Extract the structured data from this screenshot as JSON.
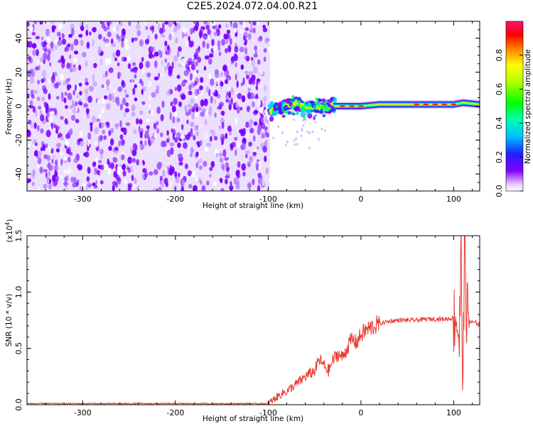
{
  "title": "C2E5.2024.072.04.00.R21",
  "chart_data": [
    {
      "type": "heatmap",
      "xlabel": "Height of straight line (km)",
      "ylabel": "Frequency (Hz)",
      "xlim": [
        -360,
        128
      ],
      "ylim": [
        -50,
        50
      ],
      "xticks": [
        -300,
        -200,
        -100,
        0,
        100
      ],
      "xtick_labels": [
        "-300",
        "-200",
        "-100",
        "0",
        "100"
      ],
      "yticks": [
        -40,
        -20,
        0,
        20,
        40
      ],
      "ytick_labels": [
        "-40",
        "-20",
        "0",
        "20",
        "40"
      ],
      "colorscale": "rainbow (purple-blue-cyan-green-yellow-red-magenta)",
      "colorbar": {
        "label": "Normalized spectral amplitude",
        "range": [
          0,
          1
        ],
        "ticks": [
          0.0,
          0.2,
          0.4,
          0.6,
          0.8
        ],
        "tick_labels": [
          "0.0",
          "0.2",
          "0.4",
          "0.6",
          "0.8"
        ]
      },
      "features": {
        "noise_region_x": [
          -360,
          -98
        ],
        "signal_ridge": [
          [
            -98,
            -3
          ],
          [
            -90,
            -2
          ],
          [
            -80,
            1
          ],
          [
            -70,
            2
          ],
          [
            -60,
            -1
          ],
          [
            -50,
            0
          ],
          [
            -40,
            -1
          ],
          [
            -30,
            0
          ],
          [
            -20,
            0
          ],
          [
            -10,
            0
          ],
          [
            0,
            0
          ],
          [
            20,
            1
          ],
          [
            40,
            1
          ],
          [
            60,
            1
          ],
          [
            80,
            1
          ],
          [
            100,
            1
          ],
          [
            110,
            2
          ],
          [
            128,
            1
          ]
        ]
      },
      "grid": false
    },
    {
      "type": "line",
      "xlabel": "Height of straight line (km)",
      "ylabel": "SNR (10 * v/v)",
      "y_exponent_label": "(x10",
      "y_exponent_power": "4",
      "y_exponent_close": ")",
      "xlim": [
        -360,
        128
      ],
      "ylim": [
        0,
        1.5
      ],
      "xticks": [
        -300,
        -200,
        -100,
        0,
        100
      ],
      "xtick_labels": [
        "-300",
        "-200",
        "-100",
        "0",
        "100"
      ],
      "yticks": [
        0.0,
        0.5,
        1.0,
        1.5
      ],
      "ytick_labels": [
        "0.0",
        "0.5",
        "1.0",
        "1.5"
      ],
      "color": "#e83a30",
      "series": [
        {
          "x": [
            -360,
            -340,
            -300,
            -250,
            -200,
            -150,
            -110,
            -100,
            -92,
            -85,
            -80,
            -70,
            -60,
            -50,
            -45,
            -40,
            -35,
            -30,
            -25,
            -20,
            -15,
            -10,
            -5,
            0,
            5,
            10,
            20,
            30,
            40,
            50,
            60,
            70,
            80,
            90,
            100,
            103,
            106,
            108,
            110,
            112,
            114,
            116,
            120,
            128
          ],
          "y": [
            0.01,
            0.01,
            0.01,
            0.01,
            0.01,
            0.01,
            0.01,
            0.01,
            0.06,
            0.1,
            0.12,
            0.18,
            0.25,
            0.3,
            0.4,
            0.35,
            0.3,
            0.4,
            0.45,
            0.42,
            0.5,
            0.58,
            0.55,
            0.62,
            0.66,
            0.68,
            0.72,
            0.74,
            0.75,
            0.75,
            0.75,
            0.76,
            0.76,
            0.76,
            0.77,
            0.8,
            0.55,
            1.3,
            0.2,
            1.48,
            0.8,
            0.75,
            0.73,
            0.72
          ]
        }
      ],
      "grid": false
    }
  ]
}
